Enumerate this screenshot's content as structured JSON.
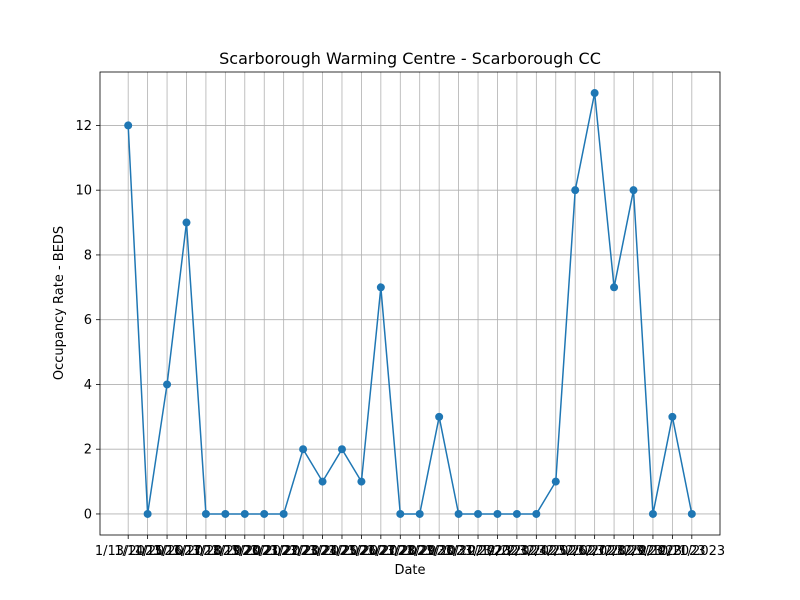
{
  "chart_data": {
    "type": "line",
    "title": "Scarborough Warming Centre - Scarborough CC",
    "xlabel": "Date",
    "ylabel": "Occupancy Rate - BEDS",
    "categories": [
      "1/13/2023",
      "1/14/2023",
      "1/15/2023",
      "1/16/2023",
      "1/17/2023",
      "1/18/2023",
      "1/19/2023",
      "1/20/2023",
      "1/21/2023",
      "1/22/2023",
      "1/23/2023",
      "1/24/2023",
      "1/25/2023",
      "1/26/2023",
      "1/27/2023",
      "1/28/2023",
      "1/29/2023",
      "1/30/2023",
      "1/31/2023",
      "2/1/2023",
      "2/2/2023",
      "2/3/2023",
      "2/4/2023",
      "2/5/2023",
      "2/6/2023",
      "2/7/2023",
      "2/8/2023",
      "2/9/2023",
      "2/10/2023",
      "2/11/2023"
    ],
    "values": [
      12,
      0,
      4,
      9,
      0,
      0,
      0,
      0,
      0,
      2,
      1,
      2,
      1,
      7,
      0,
      0,
      3,
      0,
      0,
      0,
      0,
      0,
      1,
      10,
      13,
      7,
      10,
      0,
      3,
      0
    ],
    "color": "#1f77b4",
    "ylim": [
      -0.65,
      13.65
    ],
    "yticks": [
      0,
      2,
      4,
      6,
      8,
      10,
      12
    ],
    "grid": true
  }
}
